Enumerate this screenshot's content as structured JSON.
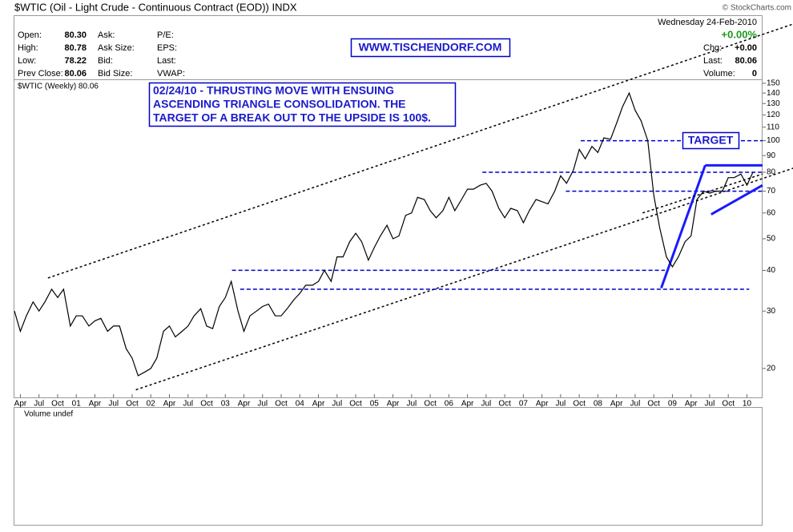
{
  "quote": {
    "title": "$WTIC (Oil - Light Crude - Continuous Contract (EOD)) INDX",
    "source": "© StockCharts.com",
    "date": "Wednesday  24-Feb-2010",
    "change_pct": "+0.00%",
    "columns": [
      [
        {
          "label": "Open:",
          "value": "80.30"
        },
        {
          "label": "High:",
          "value": "80.78"
        },
        {
          "label": "Low:",
          "value": "78.22"
        },
        {
          "label": "Prev Close:",
          "value": "80.06"
        }
      ],
      [
        {
          "label": "Ask:"
        },
        {
          "label": "Ask Size:"
        },
        {
          "label": "Bid:"
        },
        {
          "label": "Bid Size:"
        }
      ],
      [
        {
          "label": "P/E:"
        },
        {
          "label": "EPS:"
        },
        {
          "label": "Last:"
        },
        {
          "label": "VWAP:"
        }
      ],
      [
        {
          "label": "Chg:",
          "value": "+0.00"
        },
        {
          "label": "Last:",
          "value": "80.06"
        },
        {
          "label": "Volume:",
          "value": "0"
        }
      ]
    ]
  },
  "chart_data": {
    "type": "line",
    "log": true,
    "banner": "WWW.TISCHENDORF.COM",
    "note": [
      "02/24/10 - THRUSTING MOVE WITH ENSUING",
      "ASCENDING TRIANGLE CONSOLIDATION. THE",
      "TARGET OF A BREAK OUT TO THE UPSIDE IS 100$."
    ],
    "target_label": "TARGET",
    "volume_label": "Volume undef",
    "xlim": [
      2000.17,
      2010.21
    ],
    "ylim": [
      16.3,
      153.4
    ],
    "yticks": [
      20,
      30,
      40,
      50,
      60,
      70,
      80,
      90,
      100,
      110,
      120,
      130,
      140,
      150
    ],
    "xticks": [
      {
        "value": 2000.25,
        "label": "Apr"
      },
      {
        "value": 2000.5,
        "label": "Jul"
      },
      {
        "value": 2000.75,
        "label": "Oct"
      },
      {
        "value": 2001,
        "label": "01"
      },
      {
        "value": 2001.25,
        "label": "Apr"
      },
      {
        "value": 2001.5,
        "label": "Jul"
      },
      {
        "value": 2001.75,
        "label": "Oct"
      },
      {
        "value": 2002,
        "label": "02"
      },
      {
        "value": 2002.25,
        "label": "Apr"
      },
      {
        "value": 2002.5,
        "label": "Jul"
      },
      {
        "value": 2002.75,
        "label": "Oct"
      },
      {
        "value": 2003,
        "label": "03"
      },
      {
        "value": 2003.25,
        "label": "Apr"
      },
      {
        "value": 2003.5,
        "label": "Jul"
      },
      {
        "value": 2003.75,
        "label": "Oct"
      },
      {
        "value": 2004,
        "label": "04"
      },
      {
        "value": 2004.25,
        "label": "Apr"
      },
      {
        "value": 2004.5,
        "label": "Jul"
      },
      {
        "value": 2004.75,
        "label": "Oct"
      },
      {
        "value": 2005,
        "label": "05"
      },
      {
        "value": 2005.25,
        "label": "Apr"
      },
      {
        "value": 2005.5,
        "label": "Jul"
      },
      {
        "value": 2005.75,
        "label": "Oct"
      },
      {
        "value": 2006,
        "label": "06"
      },
      {
        "value": 2006.25,
        "label": "Apr"
      },
      {
        "value": 2006.5,
        "label": "Jul"
      },
      {
        "value": 2006.75,
        "label": "Oct"
      },
      {
        "value": 2007,
        "label": "07"
      },
      {
        "value": 2007.25,
        "label": "Apr"
      },
      {
        "value": 2007.5,
        "label": "Jul"
      },
      {
        "value": 2007.75,
        "label": "Oct"
      },
      {
        "value": 2008,
        "label": "08"
      },
      {
        "value": 2008.25,
        "label": "Apr"
      },
      {
        "value": 2008.5,
        "label": "Jul"
      },
      {
        "value": 2008.75,
        "label": "Oct"
      },
      {
        "value": 2009,
        "label": "09"
      },
      {
        "value": 2009.25,
        "label": "Apr"
      },
      {
        "value": 2009.5,
        "label": "Jul"
      },
      {
        "value": 2009.75,
        "label": "Oct"
      },
      {
        "value": 2010,
        "label": "10"
      }
    ],
    "x": [
      2000.17,
      2000.25,
      2000.33,
      2000.42,
      2000.5,
      2000.58,
      2000.67,
      2000.75,
      2000.83,
      2000.92,
      2001,
      2001.08,
      2001.17,
      2001.25,
      2001.33,
      2001.42,
      2001.5,
      2001.58,
      2001.67,
      2001.75,
      2001.83,
      2001.92,
      2002,
      2002.08,
      2002.17,
      2002.25,
      2002.33,
      2002.42,
      2002.5,
      2002.58,
      2002.67,
      2002.75,
      2002.83,
      2002.92,
      2003,
      2003.08,
      2003.17,
      2003.25,
      2003.33,
      2003.42,
      2003.5,
      2003.58,
      2003.67,
      2003.75,
      2003.83,
      2003.92,
      2004,
      2004.08,
      2004.17,
      2004.25,
      2004.33,
      2004.42,
      2004.5,
      2004.58,
      2004.67,
      2004.75,
      2004.83,
      2004.92,
      2005,
      2005.08,
      2005.17,
      2005.25,
      2005.33,
      2005.42,
      2005.5,
      2005.58,
      2005.67,
      2005.75,
      2005.83,
      2005.92,
      2006,
      2006.08,
      2006.17,
      2006.25,
      2006.33,
      2006.42,
      2006.5,
      2006.58,
      2006.67,
      2006.75,
      2006.83,
      2006.92,
      2007,
      2007.08,
      2007.17,
      2007.25,
      2007.33,
      2007.42,
      2007.5,
      2007.58,
      2007.67,
      2007.75,
      2007.83,
      2007.92,
      2008,
      2008.08,
      2008.17,
      2008.25,
      2008.33,
      2008.42,
      2008.5,
      2008.58,
      2008.67,
      2008.75,
      2008.83,
      2008.92,
      2009,
      2009.08,
      2009.17,
      2009.25,
      2009.33,
      2009.42,
      2009.5,
      2009.58,
      2009.67,
      2009.75,
      2009.83,
      2009.92,
      2010,
      2010.08
    ],
    "series": [
      {
        "name": "$WTIC (Weekly) 80.06",
        "color": "#000000",
        "values": [
          30,
          26,
          29,
          32,
          30,
          32,
          35,
          33,
          35,
          27,
          29,
          29,
          27,
          28,
          28.5,
          26,
          27,
          27,
          23,
          21.5,
          19,
          19.5,
          20,
          21.5,
          26,
          27,
          25,
          26,
          27,
          29,
          30.5,
          27,
          26.5,
          31,
          33,
          37,
          30,
          26,
          29,
          30,
          31,
          31.5,
          29,
          29,
          30.5,
          32.5,
          34,
          36,
          36,
          37,
          40,
          37,
          44,
          44,
          49,
          52,
          49,
          43,
          47,
          51,
          55,
          50,
          51,
          59,
          60,
          67,
          66,
          61,
          58,
          61,
          67,
          61,
          66,
          71,
          71,
          73,
          74,
          70,
          62,
          58,
          62,
          61,
          56,
          61,
          66,
          65,
          64,
          70,
          78,
          74,
          81,
          94,
          88,
          96,
          92,
          102,
          101,
          113,
          127,
          140,
          124,
          115,
          100,
          68,
          54,
          44,
          41,
          44,
          49,
          51,
          66,
          70,
          69,
          70,
          70,
          77,
          77,
          79,
          73,
          80
        ]
      }
    ],
    "lines": [
      {
        "style": "dotted",
        "color": "#000000",
        "x": [
          2000.62,
          2010.62
        ],
        "y": [
          37.9,
          228
        ]
      },
      {
        "style": "dotted",
        "color": "#000000",
        "x": [
          2001.8,
          2010.62
        ],
        "y": [
          17.2,
          82.3
        ]
      },
      {
        "style": "dashed",
        "color": "#0000cc",
        "x": [
          2007.77,
          2010.21
        ],
        "y": [
          100,
          100
        ]
      },
      {
        "style": "dashed",
        "color": "#0000cc",
        "x": [
          2006.45,
          2010.21
        ],
        "y": [
          80,
          80
        ]
      },
      {
        "style": "dashed",
        "color": "#0000cc",
        "x": [
          2007.57,
          2010.21
        ],
        "y": [
          70,
          70
        ]
      },
      {
        "style": "dashed",
        "color": "#0000cc",
        "x": [
          2003.09,
          2008.9
        ],
        "y": [
          40,
          40
        ]
      },
      {
        "style": "dashed",
        "color": "#0000cc",
        "x": [
          2003.2,
          2010.03
        ],
        "y": [
          35,
          35
        ]
      },
      {
        "style": "solid",
        "color": "#1a1aff",
        "x": [
          2008.85,
          2009.44
        ],
        "y": [
          35.3,
          84
        ]
      },
      {
        "style": "solid",
        "color": "#1a1aff",
        "x": [
          2009.44,
          2010.21
        ],
        "y": [
          84,
          84
        ]
      },
      {
        "style": "solid",
        "color": "#1a1aff",
        "x": [
          2009.52,
          2010.21
        ],
        "y": [
          59.4,
          73
        ]
      },
      {
        "style": "dotted",
        "color": "#000000",
        "x": [
          2008.6,
          2010.21
        ],
        "y": [
          60,
          79
        ]
      }
    ]
  }
}
